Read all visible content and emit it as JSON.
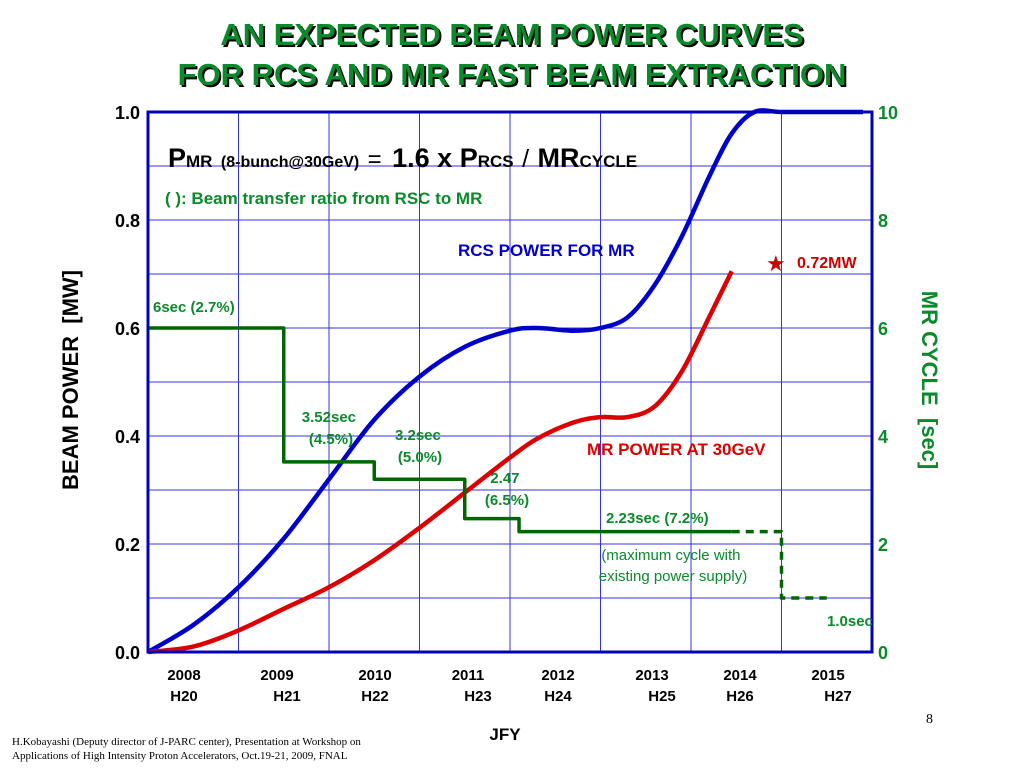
{
  "slide": {
    "title_line1": "AN EXPECTED BEAM POWER CURVES",
    "title_line2": "FOR RCS AND MR FAST BEAM EXTRACTION",
    "footer_line1": "H.Kobayashi (Deputy director of J-PARC center), Presentation at Workshop on",
    "footer_line2": "Applications of High Intensity Proton Accelerators, Oct.19-21, 2009, FNAL",
    "page_number": "8"
  },
  "chart_data": {
    "type": "line",
    "title": "",
    "xlabel": "JFY",
    "ylabel": "BEAM POWER  [MW]",
    "y2label": "MR CYCLE  [sec]",
    "xlim": [
      2008,
      2016
    ],
    "ylim": [
      0,
      1.0
    ],
    "y2lim": [
      0,
      10
    ],
    "yticks": [
      "0.0",
      "0.2",
      "0.4",
      "0.6",
      "0.8",
      "1.0"
    ],
    "y2ticks": [
      "0",
      "2",
      "4",
      "6",
      "8",
      "10"
    ],
    "xticks": [
      {
        "year": "2008",
        "era": "H20"
      },
      {
        "year": "2009",
        "era": "H21"
      },
      {
        "year": "2010",
        "era": "H22"
      },
      {
        "year": "2011",
        "era": "H23"
      },
      {
        "year": "2012",
        "era": "H24"
      },
      {
        "year": "2013",
        "era": "H25"
      },
      {
        "year": "2014",
        "era": "H26"
      },
      {
        "year": "2015",
        "era": "H27"
      }
    ],
    "grid": true,
    "colors": {
      "rcs": "#0000cc",
      "mr": "#dd0000",
      "cycle": "#006600",
      "title": "#0a8a2a",
      "grid": "#3333dd",
      "frame": "#0000bb",
      "star": "#cc0000"
    },
    "formula": {
      "p": "P",
      "mr_sub": "MR",
      "condition": "(8-bunch@30GeV)",
      "eq": "=",
      "coef": "1.6 x P",
      "rcs_sub": "RCS",
      "slash": "/",
      "mr": "MR",
      "cycle_sub": "CYCLE"
    },
    "note": "( ): Beam transfer ratio from RSC to MR",
    "series": [
      {
        "name": "RCS POWER FOR MR",
        "axis": "left",
        "x": [
          2008.0,
          2008.5,
          2009.0,
          2009.5,
          2010.0,
          2010.5,
          2011.0,
          2011.5,
          2012.0,
          2012.3,
          2012.7,
          2013.0,
          2013.3,
          2013.6,
          2013.9,
          2014.2,
          2014.45,
          2014.7,
          2015.0,
          2015.5,
          2015.9
        ],
        "values": [
          0.0,
          0.05,
          0.12,
          0.21,
          0.32,
          0.43,
          0.51,
          0.565,
          0.595,
          0.6,
          0.595,
          0.6,
          0.62,
          0.68,
          0.77,
          0.88,
          0.96,
          1.0,
          1.0,
          1.0,
          1.0
        ]
      },
      {
        "name": "MR POWER AT 30GeV",
        "axis": "left",
        "x": [
          2008.0,
          2008.5,
          2009.0,
          2009.5,
          2010.0,
          2010.5,
          2011.0,
          2011.5,
          2012.0,
          2012.3,
          2012.7,
          2013.0,
          2013.3,
          2013.6,
          2013.9,
          2014.2,
          2014.45
        ],
        "values": [
          0.0,
          0.01,
          0.04,
          0.08,
          0.12,
          0.17,
          0.23,
          0.295,
          0.36,
          0.395,
          0.425,
          0.435,
          0.435,
          0.455,
          0.52,
          0.62,
          0.705
        ]
      },
      {
        "name": "MR CYCLE",
        "axis": "right",
        "step": true,
        "x": [
          2008.0,
          2009.5,
          2009.5,
          2010.5,
          2010.5,
          2011.5,
          2011.5,
          2012.1,
          2012.1,
          2014.45
        ],
        "values": [
          6.0,
          6.0,
          3.52,
          3.52,
          3.2,
          3.2,
          2.47,
          2.47,
          2.23,
          2.23
        ]
      },
      {
        "name": "MR CYCLE (maximum cycle with existing power supply)",
        "axis": "right",
        "step": true,
        "dashed": true,
        "x": [
          2014.45,
          2015.0,
          2015.0,
          2015.5
        ],
        "values": [
          2.23,
          2.23,
          1.0,
          1.0
        ]
      }
    ],
    "annotations": {
      "star": {
        "x": 2014.45,
        "value": 0.72,
        "label": "0.72MW"
      },
      "rcs_label": "RCS POWER FOR MR",
      "mr_label": "MR POWER AT 30GeV",
      "cycle_labels": [
        {
          "line1": "6sec (2.7%)",
          "line2": ""
        },
        {
          "line1": "3.52sec",
          "line2": "(4.5%)"
        },
        {
          "line1": "3.2sec",
          "line2": "(5.0%)"
        },
        {
          "line1": "2.47",
          "line2": "(6.5%)"
        },
        {
          "line1": "2.23sec (7.2%)",
          "line2": ""
        },
        {
          "line1": "1.0sec",
          "line2": ""
        }
      ],
      "supply_note_line1": "(maximum cycle with",
      "supply_note_line2": "existing power supply)"
    }
  }
}
